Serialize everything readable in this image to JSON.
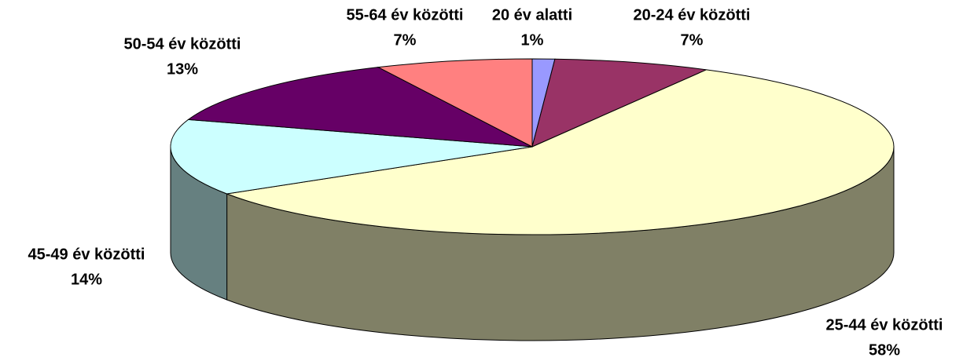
{
  "chart_data": {
    "type": "pie",
    "categories": [
      "20 év alatti",
      "20-24 év közötti",
      "25-44 év közötti",
      "45-49 év közötti",
      "50-54 év közötti",
      "55-64 év közötti"
    ],
    "values": [
      1,
      7,
      58,
      14,
      13,
      7
    ],
    "value_labels": [
      "1%",
      "7%",
      "58%",
      "14%",
      "13%",
      "7%"
    ],
    "colors": [
      "#9999ff",
      "#993366",
      "#ffffcc",
      "#ccffff",
      "#660066",
      "#ff8080"
    ]
  }
}
